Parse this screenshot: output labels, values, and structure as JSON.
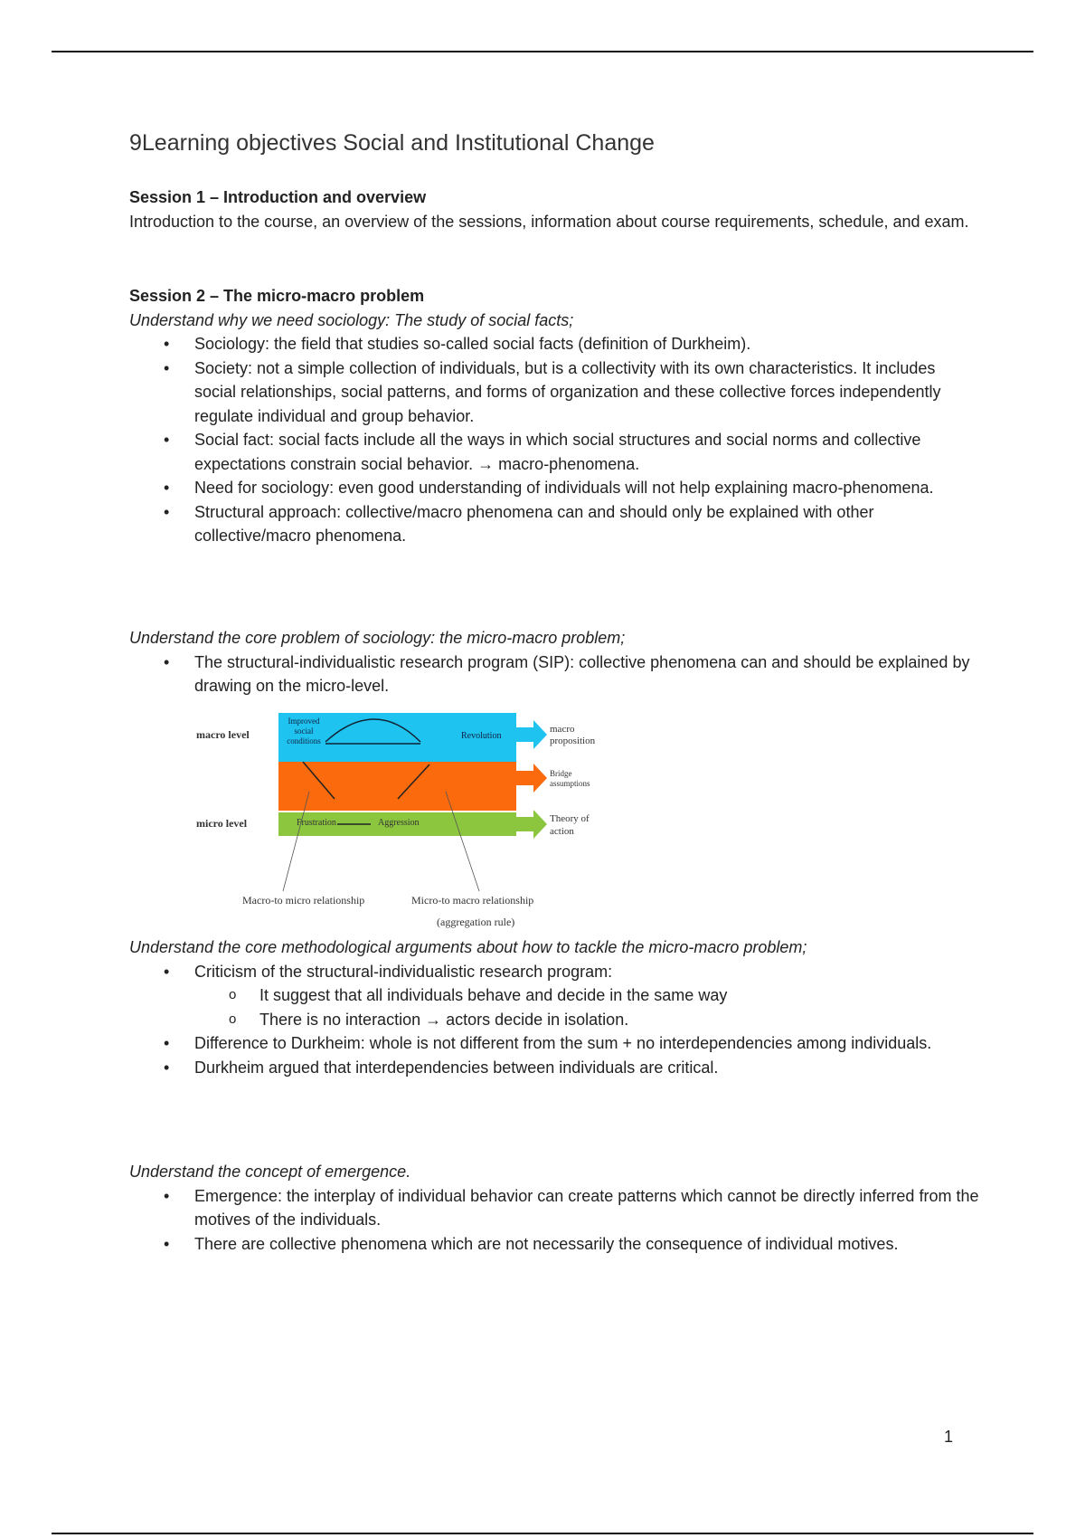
{
  "title": "9Learning objectives Social and Institutional Change",
  "s1": {
    "heading": "Session 1 – Introduction and overview",
    "text": "Introduction to the course, an overview of the sessions, information about course requirements, schedule, and exam."
  },
  "s2": {
    "heading": "Session 2 – The micro-macro problem",
    "obj1": "Understand why we need sociology: The study of social facts;",
    "b1": [
      "Sociology: the field that studies so-called social facts (definition of Durkheim).",
      "Society: not a simple collection of individuals, but is a collectivity with its own characteristics. It includes social relationships, social patterns, and forms of organization and these collective forces independently regulate individual and group behavior.",
      "Social fact: social facts include all the ways in which social structures and social norms and collective expectations constrain social behavior. → macro-phenomena.",
      "Need for sociology: even good understanding of individuals will not help explaining macro-phenomena.",
      "Structural approach: collective/macro phenomena can and should only be explained with other collective/macro phenomena."
    ],
    "obj2": "Understand the core problem of sociology: the micro-macro problem;",
    "b2": [
      "The structural-individualistic research program (SIP): collective phenomena can and should be explained by drawing on the micro-level."
    ],
    "diagram": {
      "macro_level": "macro level",
      "micro_level": "micro level",
      "improved": "Improved social conditions",
      "revolution": "Revolution",
      "frustration": "Frustration",
      "aggression": "Aggression",
      "macro_prop": "macro proposition",
      "bridge": "Bridge assumptions",
      "theory": "Theory of action",
      "m2m": "Macro-to micro relationship",
      "m2M": "Micro-to macro relationship",
      "agg": "(aggregation rule)",
      "colors": {
        "macro": "#1ec3f0",
        "bridge": "#fb6a0c",
        "micro": "#8cc63f"
      }
    },
    "obj3": "Understand the core methodological arguments about how to tackle the micro-macro problem;",
    "b3": [
      "Criticism of the structural-individualistic research program:",
      "It suggest that all individuals behave and decide in the same way",
      "There is no interaction → actors decide in isolation.",
      "Difference to Durkheim: whole is not different from the sum + no interdependencies among individuals.",
      "Durkheim argued that interdependencies between individuals are critical."
    ],
    "obj4": "Understand the concept of emergence.",
    "b4": [
      "Emergence: the interplay of individual behavior can create patterns which cannot be directly inferred from the motives of the individuals.",
      "There are collective phenomena which are not necessarily the consequence of individual motives."
    ]
  },
  "page_number": "1"
}
